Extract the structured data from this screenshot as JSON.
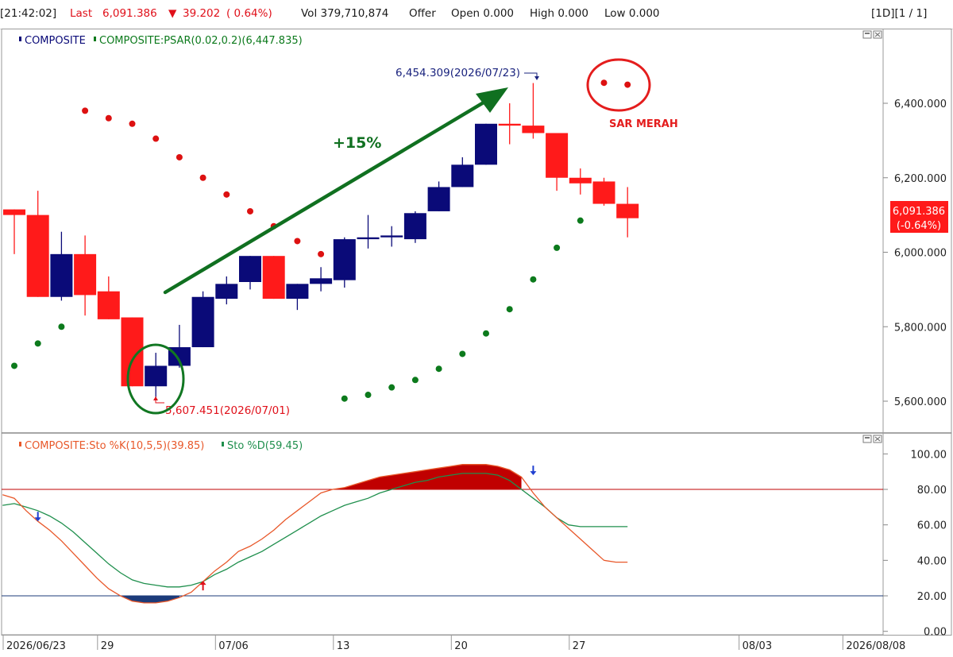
{
  "header": {
    "time": "[21:42:02]",
    "last_label": "Last",
    "last_value": "6,091.386",
    "change_arrow": "▼",
    "change_value": "39.202",
    "change_pct": "( 0.64%)",
    "volume": "Vol 379,710,874",
    "offer": "Offer",
    "open": "Open 0.000",
    "high": "High 0.000",
    "low": "Low 0.000",
    "interval": "[1D][1 / 1]"
  },
  "colors": {
    "up": "#0a0a78",
    "down": "#ff1a1a",
    "psar_above": "#dd1111",
    "psar_below": "#0c7a1c",
    "k_line": "#e8582a",
    "d_line": "#1f8f4d",
    "overbought": "#c00000",
    "oversold": "#1c3b7a"
  },
  "chart_data": [
    {
      "type": "candlestick",
      "title_series": [
        "COMPOSITE",
        "COMPOSITE:PSAR(0.02,0.2)(6,447.835)"
      ],
      "y_ticks": [
        "5,600.000",
        "5,800.000",
        "6,000.000",
        "6,200.000",
        "6,400.000"
      ],
      "ylim": [
        5500,
        6560
      ],
      "x_ticks": [
        {
          "label": "2026/06/23",
          "i": 0
        },
        {
          "label": "29",
          "i": 4
        },
        {
          "label": "07/06",
          "i": 9
        },
        {
          "label": "13",
          "i": 14
        },
        {
          "label": "20",
          "i": 19
        },
        {
          "label": "27",
          "i": 24
        },
        {
          "label": "08/03",
          "i": 31.2
        },
        {
          "label": "2026/08/08",
          "i": 35.6
        }
      ],
      "candles": [
        {
          "o": 6115,
          "h": 6115,
          "l": 5995,
          "c": 6100
        },
        {
          "o": 6100,
          "h": 6165,
          "l": 5880,
          "c": 5880
        },
        {
          "o": 5880,
          "h": 6055,
          "l": 5870,
          "c": 5995
        },
        {
          "o": 5995,
          "h": 6045,
          "l": 5830,
          "c": 5885
        },
        {
          "o": 5895,
          "h": 5935,
          "l": 5820,
          "c": 5820
        },
        {
          "o": 5825,
          "h": 5825,
          "l": 5640,
          "c": 5640
        },
        {
          "o": 5640,
          "h": 5730,
          "l": 5607.451,
          "c": 5695
        },
        {
          "o": 5695,
          "h": 5805,
          "l": 5690,
          "c": 5745
        },
        {
          "o": 5745,
          "h": 5895,
          "l": 5745,
          "c": 5880
        },
        {
          "o": 5875,
          "h": 5935,
          "l": 5860,
          "c": 5915
        },
        {
          "o": 5920,
          "h": 5990,
          "l": 5900,
          "c": 5990
        },
        {
          "o": 5990,
          "h": 5990,
          "l": 5875,
          "c": 5875
        },
        {
          "o": 5875,
          "h": 5915,
          "l": 5845,
          "c": 5915
        },
        {
          "o": 5915,
          "h": 5960,
          "l": 5895,
          "c": 5930
        },
        {
          "o": 5925,
          "h": 6040,
          "l": 5905,
          "c": 6035
        },
        {
          "o": 6035,
          "h": 6100,
          "l": 6010,
          "c": 6040
        },
        {
          "o": 6040,
          "h": 6070,
          "l": 6015,
          "c": 6045
        },
        {
          "o": 6035,
          "h": 6110,
          "l": 6025,
          "c": 6105
        },
        {
          "o": 6110,
          "h": 6190,
          "l": 6110,
          "c": 6175
        },
        {
          "o": 6175,
          "h": 6255,
          "l": 6175,
          "c": 6235
        },
        {
          "o": 6235,
          "h": 6345,
          "l": 6235,
          "c": 6345
        },
        {
          "o": 6345,
          "h": 6400,
          "l": 6290,
          "c": 6340
        },
        {
          "o": 6340,
          "h": 6454.309,
          "l": 6305,
          "c": 6320
        },
        {
          "o": 6320,
          "h": 6320,
          "l": 6165,
          "c": 6200
        },
        {
          "o": 6200,
          "h": 6225,
          "l": 6155,
          "c": 6185
        },
        {
          "o": 6190,
          "h": 6200,
          "l": 6125,
          "c": 6130
        },
        {
          "o": 6130,
          "h": 6175,
          "l": 6040,
          "c": 6091.386
        }
      ],
      "psar": [
        {
          "i": 0,
          "v": 5695
        },
        {
          "i": 1,
          "v": 5755
        },
        {
          "i": 2,
          "v": 5800
        },
        {
          "i": 3,
          "v": 6380
        },
        {
          "i": 4,
          "v": 6360
        },
        {
          "i": 5,
          "v": 6345
        },
        {
          "i": 6,
          "v": 6305
        },
        {
          "i": 7,
          "v": 6255
        },
        {
          "i": 8,
          "v": 6200
        },
        {
          "i": 9,
          "v": 6155
        },
        {
          "i": 10,
          "v": 6110
        },
        {
          "i": 11,
          "v": 6070
        },
        {
          "i": 12,
          "v": 6030
        },
        {
          "i": 13,
          "v": 5995
        },
        {
          "i": 14,
          "v": 5607
        },
        {
          "i": 15,
          "v": 5617
        },
        {
          "i": 16,
          "v": 5637
        },
        {
          "i": 17,
          "v": 5657
        },
        {
          "i": 18,
          "v": 5687
        },
        {
          "i": 19,
          "v": 5727
        },
        {
          "i": 20,
          "v": 5782
        },
        {
          "i": 21,
          "v": 5847
        },
        {
          "i": 22,
          "v": 5927
        },
        {
          "i": 23,
          "v": 6012
        },
        {
          "i": 24,
          "v": 6085
        },
        {
          "i": 25,
          "v": 6455
        },
        {
          "i": 26,
          "v": 6450
        }
      ],
      "annotations": {
        "high_label": "6,454.309(2026/07/23)",
        "low_label": "5,607.451(2026/07/01)",
        "gain_label": "+15%",
        "sar_label": "SAR MERAH",
        "last_price": "6,091.386",
        "last_change": "(-0.64%)"
      }
    },
    {
      "type": "line",
      "title_series": [
        "COMPOSITE:Sto %K(10,5,5)(39.85)",
        "Sto %D(59.45)"
      ],
      "y_ticks": [
        "0.00",
        "20.00",
        "40.00",
        "60.00",
        "80.00",
        "100.00"
      ],
      "ylim": [
        -10,
        110
      ],
      "levels": [
        80,
        20
      ],
      "series": [
        {
          "name": "COMPOSITE:Sto %K(10,5,5)(39.85)",
          "x": [
            -0.5,
            0,
            0.5,
            1,
            1.5,
            2,
            2.5,
            3,
            3.5,
            4,
            4.5,
            5,
            5.5,
            6,
            6.5,
            7,
            7.5,
            8,
            8.5,
            9,
            9.5,
            10,
            10.5,
            11,
            11.5,
            12,
            12.5,
            13,
            13.5,
            14,
            14.5,
            15,
            15.5,
            16,
            16.5,
            17,
            17.5,
            18,
            18.5,
            19,
            19.5,
            20,
            20.5,
            21,
            21.5,
            22,
            22.5,
            23,
            23.5,
            24,
            24.5,
            25,
            25.5,
            26
          ],
          "values": [
            77,
            75,
            68,
            62,
            57,
            51,
            44,
            37,
            30,
            24,
            20,
            17,
            16,
            16,
            17,
            19,
            22,
            28,
            34,
            39,
            45,
            48,
            52,
            57,
            63,
            68,
            73,
            78,
            80,
            81,
            83,
            85,
            87,
            88,
            89,
            90,
            91,
            92,
            93,
            94,
            94,
            94,
            93,
            91,
            87,
            78,
            70,
            64,
            58,
            52,
            46,
            40,
            39,
            39
          ]
        },
        {
          "name": "Sto %D(59.45)",
          "x": [
            -0.5,
            0,
            0.5,
            1,
            1.5,
            2,
            2.5,
            3,
            3.5,
            4,
            4.5,
            5,
            5.5,
            6,
            6.5,
            7,
            7.5,
            8,
            8.5,
            9,
            9.5,
            10,
            10.5,
            11,
            11.5,
            12,
            12.5,
            13,
            13.5,
            14,
            14.5,
            15,
            15.5,
            16,
            16.5,
            17,
            17.5,
            18,
            18.5,
            19,
            19.5,
            20,
            20.5,
            21,
            21.5,
            22,
            22.5,
            23,
            23.5,
            24,
            24.5,
            25,
            25.5,
            26
          ],
          "values": [
            71,
            72,
            70,
            68,
            65,
            61,
            56,
            50,
            44,
            38,
            33,
            29,
            27,
            26,
            25,
            25,
            26,
            28,
            32,
            35,
            39,
            42,
            45,
            49,
            53,
            57,
            61,
            65,
            68,
            71,
            73,
            75,
            78,
            80,
            82,
            84,
            85,
            87,
            88,
            89,
            89,
            89,
            88,
            85,
            80,
            75,
            70,
            64,
            60,
            59,
            59,
            59,
            59,
            59
          ]
        }
      ],
      "signals": [
        {
          "i": 1,
          "v": 62,
          "dir": "down"
        },
        {
          "i": 8,
          "v": 28,
          "dir": "up"
        },
        {
          "i": 22,
          "v": 88,
          "dir": "down"
        }
      ]
    }
  ]
}
